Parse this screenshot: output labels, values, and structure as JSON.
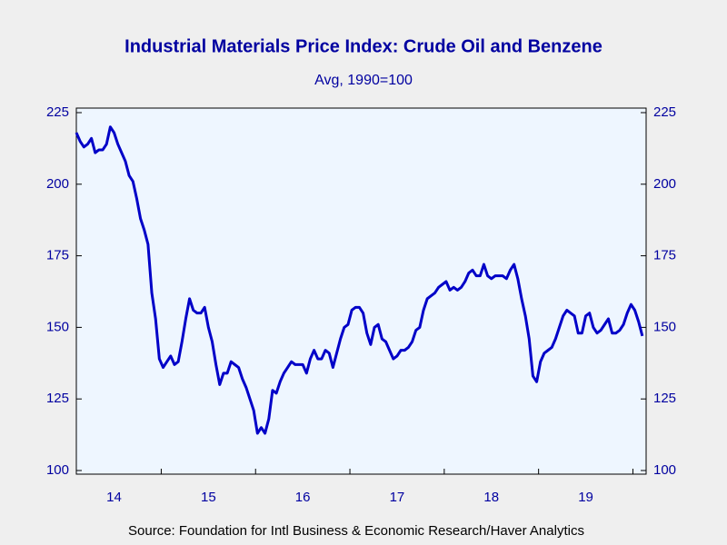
{
  "chart_data": {
    "type": "line",
    "title": "Industrial Materials Price Index: Crude Oil and Benzene",
    "subtitle": "Avg, 1990=100",
    "source": "Source:  Foundation for Intl Business & Economic Research/Haver Analytics",
    "x": [
      2014.1,
      2014.14,
      2014.18,
      2014.22,
      2014.26,
      2014.3,
      2014.34,
      2014.38,
      2014.42,
      2014.46,
      2014.5,
      2014.54,
      2014.58,
      2014.62,
      2014.66,
      2014.7,
      2014.74,
      2014.78,
      2014.82,
      2014.86,
      2014.9,
      2014.94,
      2014.98,
      2015.02,
      2015.06,
      2015.1,
      2015.14,
      2015.18,
      2015.22,
      2015.26,
      2015.3,
      2015.34,
      2015.38,
      2015.42,
      2015.46,
      2015.5,
      2015.54,
      2015.58,
      2015.62,
      2015.66,
      2015.7,
      2015.74,
      2015.78,
      2015.82,
      2015.86,
      2015.9,
      2015.94,
      2015.98,
      2016.02,
      2016.06,
      2016.1,
      2016.14,
      2016.18,
      2016.22,
      2016.26,
      2016.3,
      2016.34,
      2016.38,
      2016.42,
      2016.46,
      2016.5,
      2016.54,
      2016.58,
      2016.62,
      2016.66,
      2016.7,
      2016.74,
      2016.78,
      2016.82,
      2016.86,
      2016.9,
      2016.94,
      2016.98,
      2017.02,
      2017.06,
      2017.1,
      2017.14,
      2017.18,
      2017.22,
      2017.26,
      2017.3,
      2017.34,
      2017.38,
      2017.42,
      2017.46,
      2017.5,
      2017.54,
      2017.58,
      2017.62,
      2017.66,
      2017.7,
      2017.74,
      2017.78,
      2017.82,
      2017.86,
      2017.9,
      2017.94,
      2017.98,
      2018.02,
      2018.06,
      2018.1,
      2018.14,
      2018.18,
      2018.22,
      2018.26,
      2018.3,
      2018.34,
      2018.38,
      2018.42,
      2018.46,
      2018.5,
      2018.54,
      2018.58,
      2018.62,
      2018.66,
      2018.7,
      2018.74,
      2018.78,
      2018.82,
      2018.86,
      2018.9,
      2018.94,
      2018.98,
      2019.02,
      2019.06,
      2019.1,
      2019.14,
      2019.18,
      2019.22,
      2019.26,
      2019.3,
      2019.34,
      2019.38,
      2019.42,
      2019.46,
      2019.5,
      2019.54,
      2019.58,
      2019.62,
      2019.66,
      2019.7,
      2019.74,
      2019.78,
      2019.82,
      2019.86,
      2019.9,
      2019.94,
      2019.98,
      2020.02,
      2020.06,
      2020.1
    ],
    "series": [
      {
        "color": "#0000c8",
        "values": [
          218,
          215,
          213,
          214,
          216,
          211,
          212,
          212,
          214,
          220,
          218,
          214,
          211,
          208,
          203,
          201,
          195,
          188,
          184,
          179,
          162,
          153,
          139,
          136,
          138,
          140,
          137,
          138,
          145,
          153,
          160,
          156,
          155,
          155,
          157,
          150,
          145,
          137,
          130,
          134,
          134,
          138,
          137,
          136,
          132,
          129,
          125,
          121,
          113,
          115,
          113,
          118,
          128,
          127,
          131,
          134,
          136,
          138,
          137,
          137,
          137,
          134,
          139,
          142,
          139,
          139,
          142,
          141,
          136,
          141,
          146,
          150,
          151,
          156,
          157,
          157,
          155,
          148,
          144,
          150,
          151,
          146,
          145,
          142,
          139,
          140,
          142,
          142,
          143,
          145,
          149,
          150,
          156,
          160,
          161,
          162,
          164,
          165,
          166,
          163,
          164,
          163,
          164,
          166,
          169,
          170,
          168,
          168,
          172,
          168,
          167,
          168,
          168,
          168,
          167,
          170,
          172,
          167,
          160,
          154,
          146,
          133,
          131,
          138,
          141,
          142,
          143,
          146,
          150,
          154,
          156,
          155,
          154,
          148,
          148,
          154,
          155,
          150,
          148,
          149,
          151,
          153,
          148,
          148,
          149,
          151,
          155,
          158,
          156,
          152,
          147
        ]
      }
    ],
    "xlim": [
      2014.1,
      2020.14
    ],
    "xticks": [
      {
        "value": 2014.5,
        "label": "14"
      },
      {
        "value": 2015.5,
        "label": "15"
      },
      {
        "value": 2016.5,
        "label": "16"
      },
      {
        "value": 2017.5,
        "label": "17"
      },
      {
        "value": 2018.5,
        "label": "18"
      },
      {
        "value": 2019.5,
        "label": "19"
      }
    ],
    "ylim": [
      100,
      225
    ],
    "yticks": [
      100,
      125,
      150,
      175,
      200,
      225
    ],
    "y2lim": [
      100,
      225
    ],
    "y2ticks": [
      100,
      125,
      150,
      175,
      200,
      225
    ]
  }
}
